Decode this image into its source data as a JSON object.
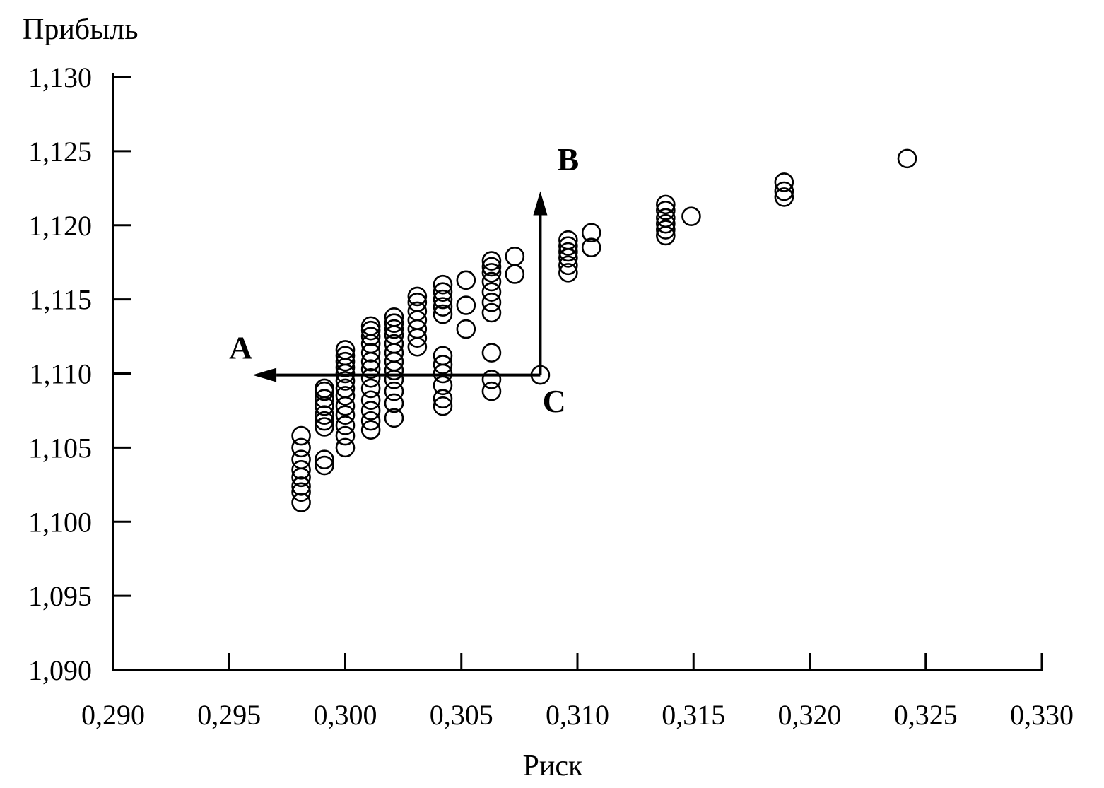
{
  "chart_data": {
    "type": "scatter",
    "ylabel": "Прибыль",
    "xlabel": "Риск",
    "xlim": [
      0.29,
      0.33
    ],
    "ylim": [
      1.09,
      1.13
    ],
    "x_ticks": [
      0.29,
      0.295,
      0.3,
      0.305,
      0.31,
      0.315,
      0.32,
      0.325,
      0.33
    ],
    "x_tick_labels": [
      "0,290",
      "0,295",
      "0,300",
      "0,305",
      "0,310",
      "0,315",
      "0,320",
      "0,325",
      "0,330"
    ],
    "y_ticks": [
      1.09,
      1.095,
      1.1,
      1.105,
      1.11,
      1.115,
      1.12,
      1.125,
      1.13
    ],
    "y_tick_labels": [
      "1,090",
      "1,095",
      "1,100",
      "1,105",
      "1,110",
      "1,115",
      "1,120",
      "1,125",
      "1,130"
    ],
    "grid": false,
    "points": [
      [
        0.2981,
        1.1013
      ],
      [
        0.2981,
        1.102
      ],
      [
        0.2981,
        1.1024
      ],
      [
        0.2981,
        1.103
      ],
      [
        0.2981,
        1.1035
      ],
      [
        0.2981,
        1.1042
      ],
      [
        0.2981,
        1.105
      ],
      [
        0.2981,
        1.1058
      ],
      [
        0.2991,
        1.1038
      ],
      [
        0.2991,
        1.1042
      ],
      [
        0.2991,
        1.1064
      ],
      [
        0.2991,
        1.1068
      ],
      [
        0.2991,
        1.1072
      ],
      [
        0.2991,
        1.1078
      ],
      [
        0.2991,
        1.1083
      ],
      [
        0.2991,
        1.1088
      ],
      [
        0.2991,
        1.109
      ],
      [
        0.3,
        1.105
      ],
      [
        0.3,
        1.1058
      ],
      [
        0.3,
        1.1065
      ],
      [
        0.3,
        1.1072
      ],
      [
        0.3,
        1.1078
      ],
      [
        0.3,
        1.1085
      ],
      [
        0.3,
        1.109
      ],
      [
        0.3,
        1.1095
      ],
      [
        0.3,
        1.11
      ],
      [
        0.3,
        1.1104
      ],
      [
        0.3,
        1.1108
      ],
      [
        0.3,
        1.1112
      ],
      [
        0.3,
        1.1116
      ],
      [
        0.3011,
        1.1062
      ],
      [
        0.3011,
        1.1068
      ],
      [
        0.3011,
        1.1075
      ],
      [
        0.3011,
        1.1082
      ],
      [
        0.3011,
        1.109
      ],
      [
        0.3011,
        1.1097
      ],
      [
        0.3011,
        1.1103
      ],
      [
        0.3011,
        1.1108
      ],
      [
        0.3011,
        1.1114
      ],
      [
        0.3011,
        1.112
      ],
      [
        0.3011,
        1.1125
      ],
      [
        0.3011,
        1.1129
      ],
      [
        0.3011,
        1.1132
      ],
      [
        0.3021,
        1.107
      ],
      [
        0.3021,
        1.108
      ],
      [
        0.3021,
        1.1088
      ],
      [
        0.3021,
        1.1096
      ],
      [
        0.3021,
        1.1102
      ],
      [
        0.3021,
        1.1108
      ],
      [
        0.3021,
        1.1114
      ],
      [
        0.3021,
        1.112
      ],
      [
        0.3021,
        1.1126
      ],
      [
        0.3021,
        1.113
      ],
      [
        0.3021,
        1.1134
      ],
      [
        0.3021,
        1.1138
      ],
      [
        0.3031,
        1.1118
      ],
      [
        0.3031,
        1.1124
      ],
      [
        0.3031,
        1.113
      ],
      [
        0.3031,
        1.1136
      ],
      [
        0.3031,
        1.1142
      ],
      [
        0.3031,
        1.1148
      ],
      [
        0.3031,
        1.1152
      ],
      [
        0.3042,
        1.1078
      ],
      [
        0.3042,
        1.1083
      ],
      [
        0.3042,
        1.1092
      ],
      [
        0.3042,
        1.11
      ],
      [
        0.3042,
        1.1106
      ],
      [
        0.3042,
        1.1112
      ],
      [
        0.3042,
        1.114
      ],
      [
        0.3042,
        1.1145
      ],
      [
        0.3042,
        1.115
      ],
      [
        0.3042,
        1.1155
      ],
      [
        0.3042,
        1.116
      ],
      [
        0.3052,
        1.113
      ],
      [
        0.3052,
        1.1146
      ],
      [
        0.3052,
        1.1163
      ],
      [
        0.3063,
        1.1088
      ],
      [
        0.3063,
        1.1096
      ],
      [
        0.3063,
        1.1114
      ],
      [
        0.3063,
        1.1141
      ],
      [
        0.3063,
        1.1148
      ],
      [
        0.3063,
        1.1155
      ],
      [
        0.3063,
        1.1162
      ],
      [
        0.3063,
        1.1168
      ],
      [
        0.3063,
        1.1172
      ],
      [
        0.3063,
        1.1176
      ],
      [
        0.3073,
        1.1167
      ],
      [
        0.3073,
        1.1179
      ],
      [
        0.3084,
        1.1099
      ],
      [
        0.3096,
        1.1168
      ],
      [
        0.3096,
        1.1173
      ],
      [
        0.3096,
        1.1178
      ],
      [
        0.3096,
        1.1182
      ],
      [
        0.3096,
        1.1186
      ],
      [
        0.3096,
        1.119
      ],
      [
        0.3106,
        1.1185
      ],
      [
        0.3106,
        1.1195
      ],
      [
        0.3138,
        1.1193
      ],
      [
        0.3138,
        1.1197
      ],
      [
        0.3138,
        1.1201
      ],
      [
        0.3138,
        1.1205
      ],
      [
        0.3138,
        1.121
      ],
      [
        0.3138,
        1.1214
      ],
      [
        0.3149,
        1.1206
      ],
      [
        0.3189,
        1.1219
      ],
      [
        0.3189,
        1.1223
      ],
      [
        0.3189,
        1.1229
      ],
      [
        0.3242,
        1.1245
      ]
    ],
    "annotations": [
      {
        "label": "A",
        "x": 0.2955,
        "y": 1.111
      },
      {
        "label": "B",
        "x": 0.3096,
        "y": 1.1237
      },
      {
        "label": "C",
        "x": 0.309,
        "y": 1.1074
      }
    ],
    "arrows": [
      {
        "from": [
          0.3084,
          1.1099
        ],
        "to": [
          0.296,
          1.1099
        ]
      },
      {
        "from": [
          0.3084,
          1.1099
        ],
        "to": [
          0.3084,
          1.1223
        ]
      }
    ]
  }
}
